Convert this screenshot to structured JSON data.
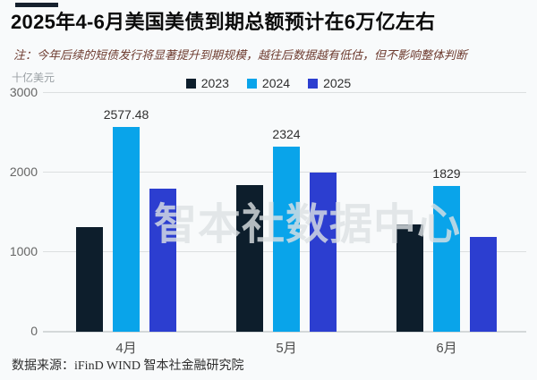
{
  "header": {
    "title": "2025年4-6月美国美债到期总额预计在6万亿左右",
    "note": "注：今年后续的短债发行将显著提升到期规模，越往后数据越有低估，但不影响整体判断"
  },
  "chart_data": {
    "type": "bar",
    "unit_label": "十亿美元",
    "categories": [
      "4月",
      "5月",
      "6月"
    ],
    "series": [
      {
        "name": "2023",
        "color": "#0d1e2c",
        "values": [
          1320,
          1840,
          1345
        ]
      },
      {
        "name": "2024",
        "color": "#09a4ea",
        "values": [
          2577.48,
          2324,
          1829
        ],
        "labels": [
          "2577.48",
          "2324",
          "1829"
        ]
      },
      {
        "name": "2025",
        "color": "#2c3ed0",
        "values": [
          1800,
          2005,
          1195
        ]
      }
    ],
    "ylim": [
      0,
      3000
    ],
    "yticks": [
      0,
      1000,
      2000,
      3000
    ],
    "grid": true,
    "legend_position": "top-center"
  },
  "watermark": "智本社数据中心",
  "footer": {
    "source": "数据来源：iFinD WIND 智本社金融研究院"
  },
  "colors": {
    "accent": "#16212e",
    "background": "#f8fafb",
    "note_text": "#6d3a2e"
  }
}
